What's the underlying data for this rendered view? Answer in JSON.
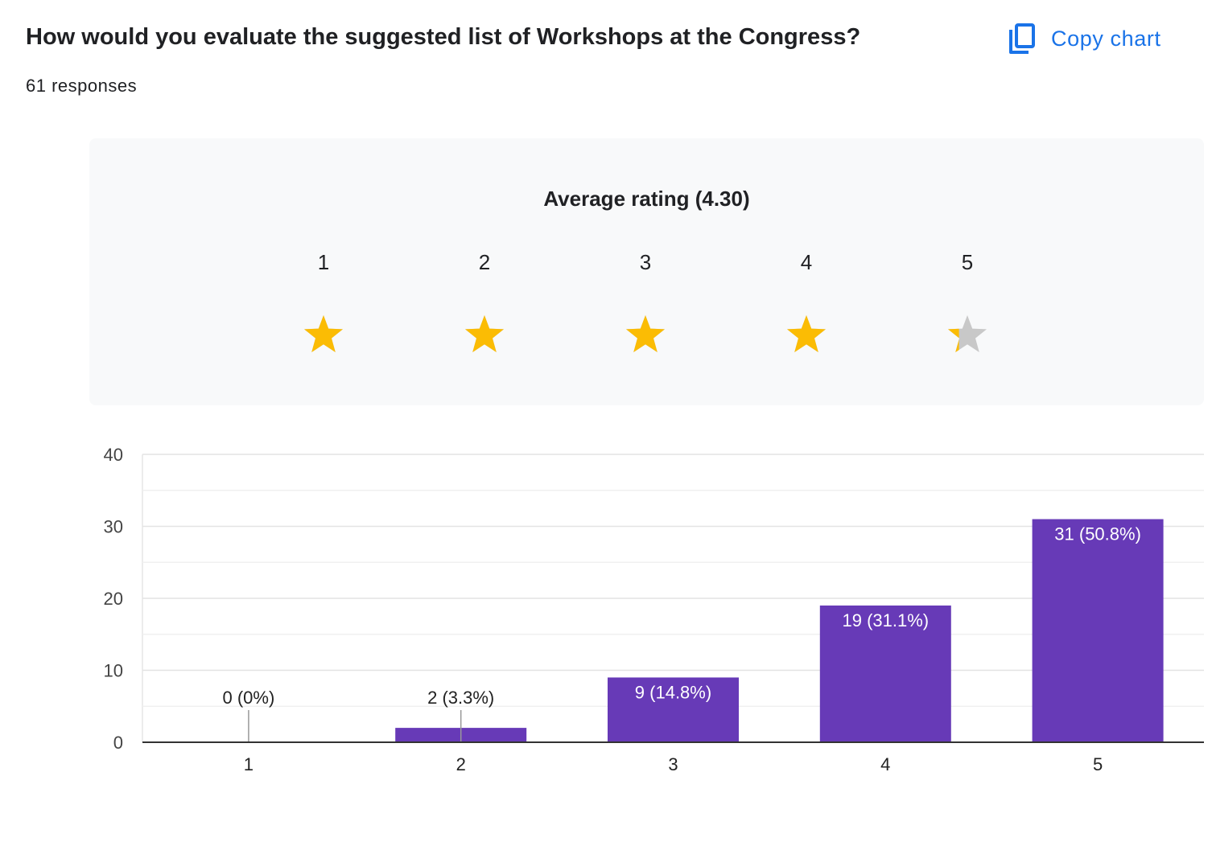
{
  "question": {
    "title": "How would you evaluate the suggested list of Workshops at the Congress?",
    "responses": "61 responses"
  },
  "copy_chart": {
    "label": "Copy chart",
    "icon": "copy-icon",
    "color": "#1a73e8"
  },
  "rating": {
    "title": "Average rating (4.30)",
    "value": 4.3,
    "max": 5,
    "star_labels": [
      "1",
      "2",
      "3",
      "4",
      "5"
    ],
    "filled_color": "#fbbc04",
    "empty_color": "#c8c8c8",
    "icon": "star-icon"
  },
  "chart_data": {
    "type": "bar",
    "categories": [
      "1",
      "2",
      "3",
      "4",
      "5"
    ],
    "values": [
      0,
      2,
      9,
      19,
      31
    ],
    "labels": [
      "0 (0%)",
      "2 (3.3%)",
      "9 (14.8%)",
      "19 (31.1%)",
      "31 (50.8%)"
    ],
    "ylim": [
      0,
      40
    ],
    "yticks": [
      0,
      10,
      20,
      30,
      40
    ],
    "bar_color": "#673ab7",
    "grid": true,
    "title": "",
    "xlabel": "",
    "ylabel": ""
  }
}
